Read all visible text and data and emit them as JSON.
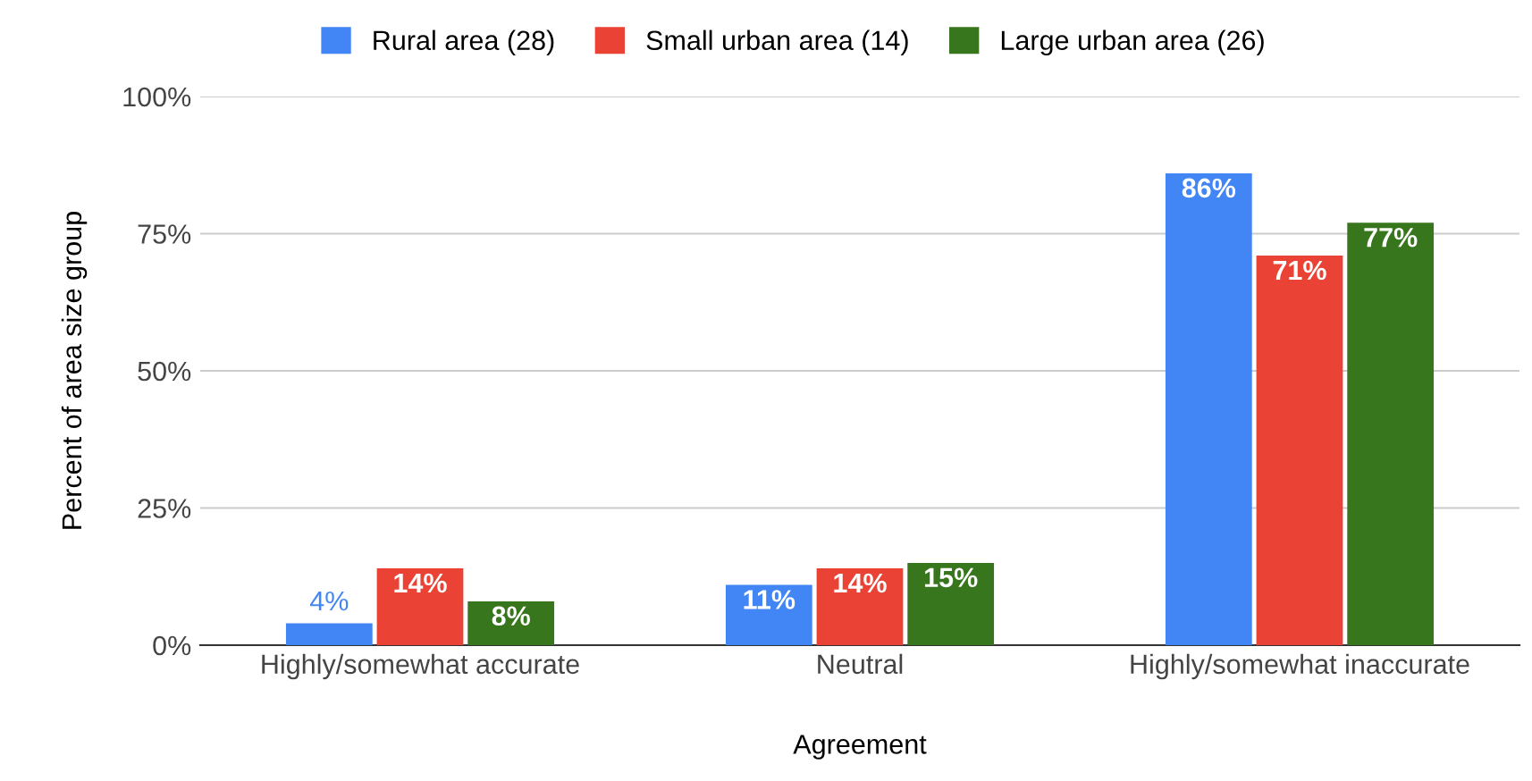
{
  "chart_data": {
    "type": "bar",
    "xlabel": "Agreement",
    "ylabel": "Percent of area size group",
    "categories": [
      "Highly/somewhat accurate",
      "Neutral",
      "Highly/somewhat inaccurate"
    ],
    "series": [
      {
        "name": "Rural area (28)",
        "color": "#4285f4",
        "values": [
          4,
          11,
          86
        ],
        "value_labels": [
          "4%",
          "11%",
          "86%"
        ]
      },
      {
        "name": "Small urban area (14)",
        "color": "#ea4335",
        "values": [
          14,
          14,
          71
        ],
        "value_labels": [
          "14%",
          "14%",
          "71%"
        ]
      },
      {
        "name": "Large urban area (26)",
        "color": "#38761d",
        "values": [
          8,
          15,
          77
        ],
        "value_labels": [
          "8%",
          "15%",
          "77%"
        ]
      }
    ],
    "ylim": [
      0,
      100
    ],
    "yticks": [
      {
        "value": 0,
        "label": "0%"
      },
      {
        "value": 25,
        "label": "25%"
      },
      {
        "value": 50,
        "label": "50%"
      },
      {
        "value": 75,
        "label": "75%"
      },
      {
        "value": 100,
        "label": "100%"
      }
    ],
    "grid": "y",
    "legend": "top"
  }
}
